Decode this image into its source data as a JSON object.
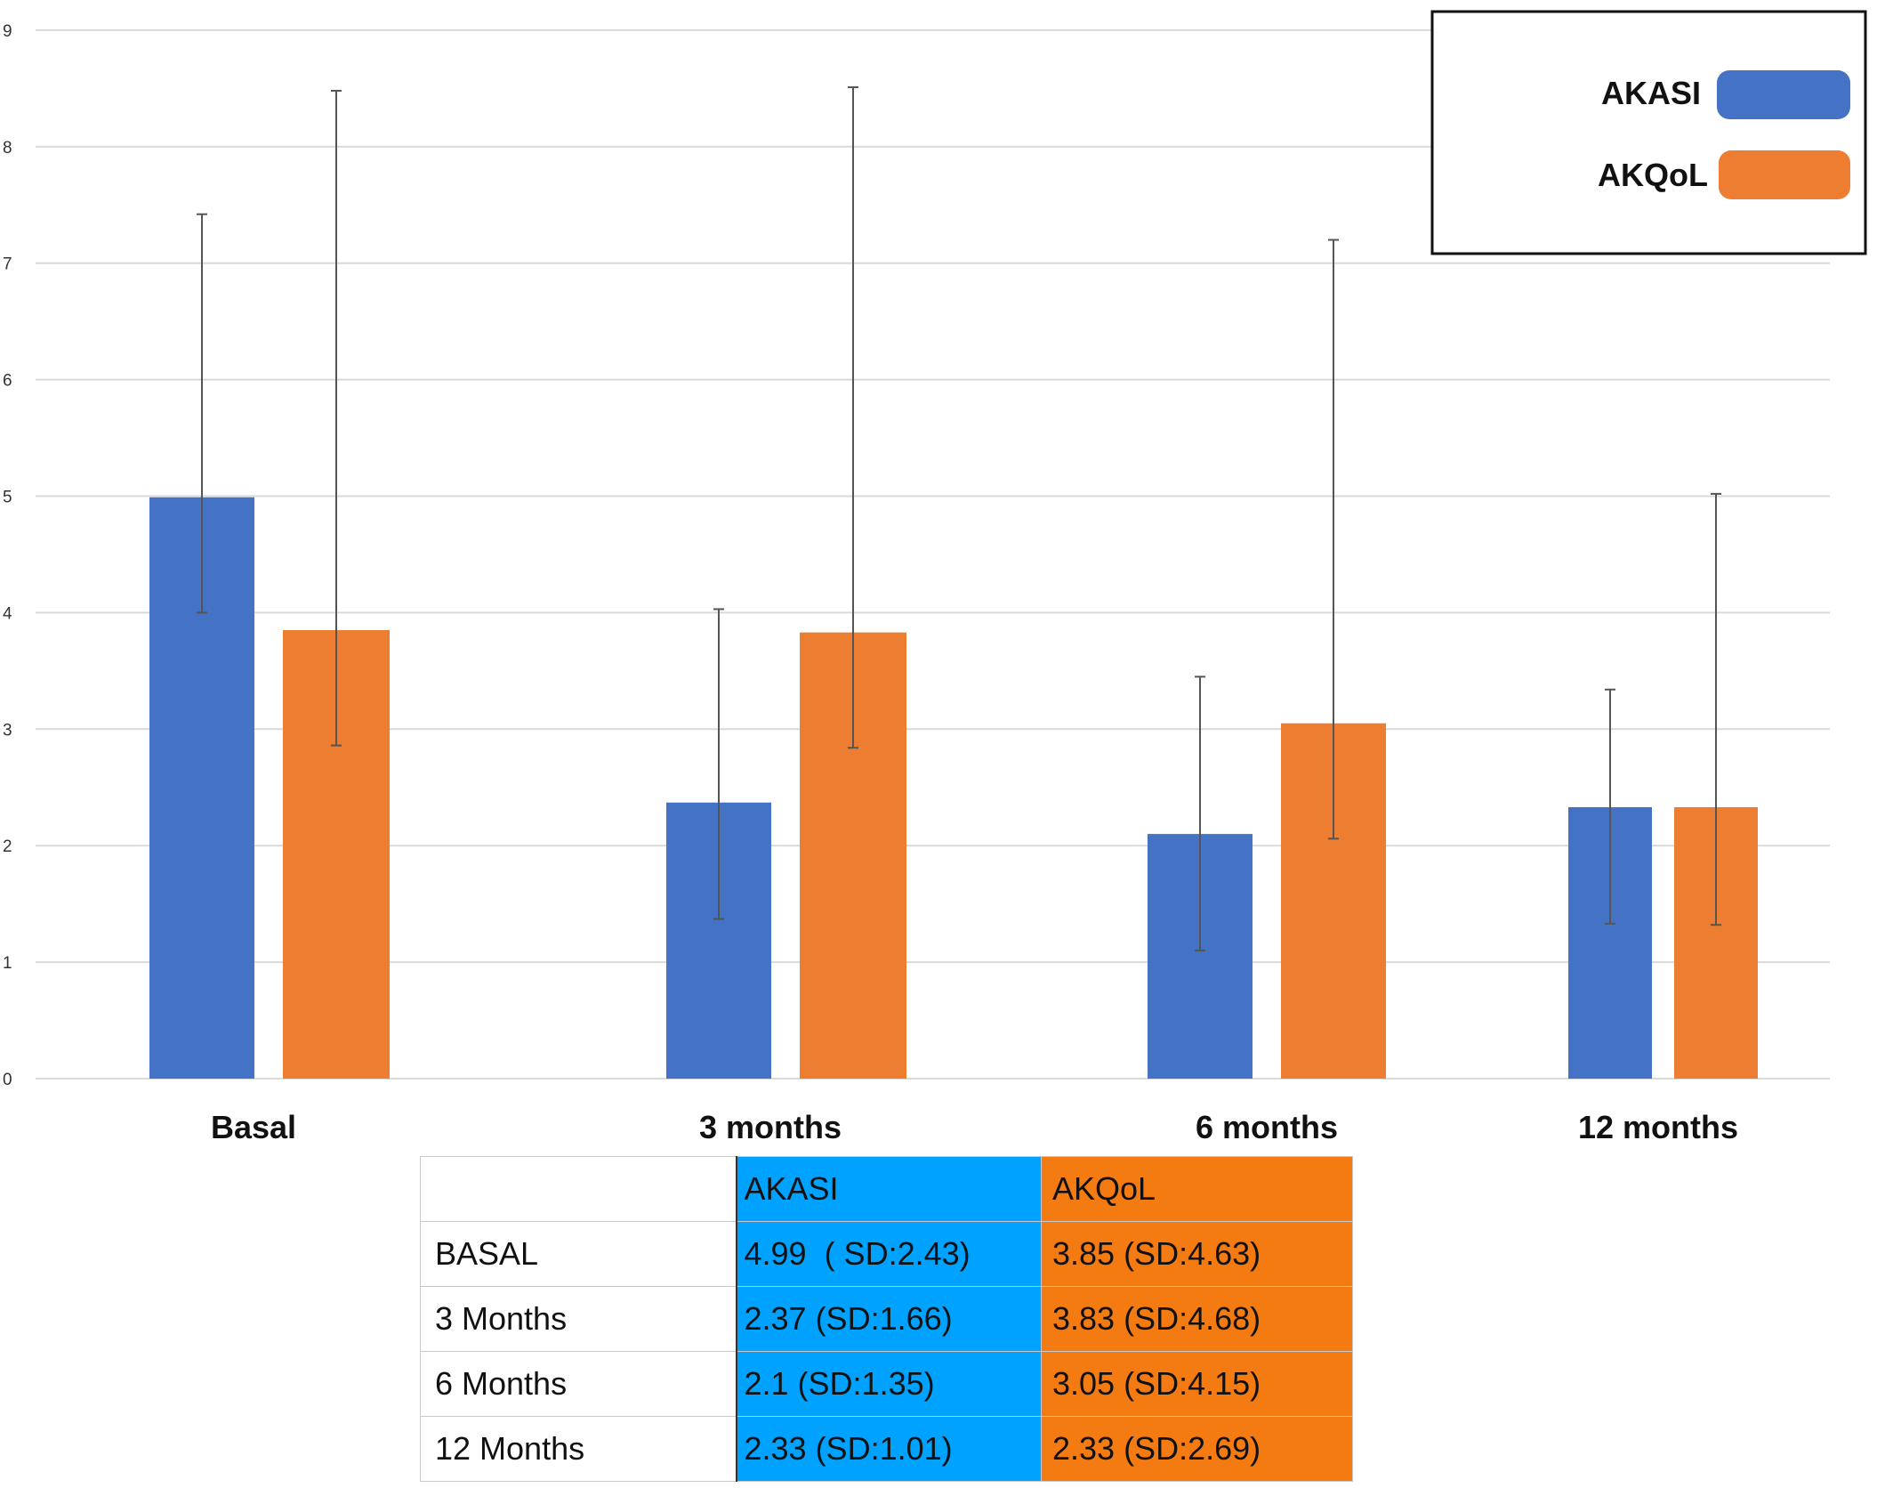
{
  "chart_data": {
    "type": "bar",
    "categories": [
      "Basal",
      "3 months",
      "6 months",
      "12 months"
    ],
    "series": [
      {
        "name": "AKASI",
        "color": "#4472c4",
        "values": [
          4.99,
          2.37,
          2.1,
          2.33
        ],
        "error_low": [
          4.0,
          1.37,
          1.1,
          1.33
        ],
        "error_high": [
          7.42,
          4.03,
          3.45,
          3.34
        ]
      },
      {
        "name": "AKQoL",
        "color": "#ed7d31",
        "values": [
          3.85,
          3.83,
          3.05,
          2.33
        ],
        "error_low": [
          2.86,
          2.84,
          2.06,
          1.32
        ],
        "error_high": [
          8.48,
          8.51,
          7.2,
          5.02
        ]
      }
    ],
    "yticks": [
      "0",
      "1",
      "2",
      "3",
      "4",
      "5",
      "6",
      "7",
      "8",
      "9"
    ],
    "ylim": [
      0,
      9
    ],
    "grid": true,
    "legend_position": "top-right",
    "title": "",
    "xlabel": "",
    "ylabel": ""
  },
  "table": {
    "header": [
      "",
      "AKASI",
      "AKQoL"
    ],
    "header_colors": [
      "#ffffff",
      "#00a2ff",
      "#f47a12"
    ],
    "rows": [
      [
        "BASAL",
        "4.99  ( SD:2.43)",
        "3.85 (SD:4.63)"
      ],
      [
        "3 Months",
        "2.37 (SD:1.66)",
        "3.83 (SD:4.68)"
      ],
      [
        "6 Months",
        "2.1 (SD:1.35)",
        "3.05 (SD:4.15)"
      ],
      [
        "12 Months",
        "2.33 (SD:1.01)",
        "2.33 (SD:2.69)"
      ]
    ]
  }
}
